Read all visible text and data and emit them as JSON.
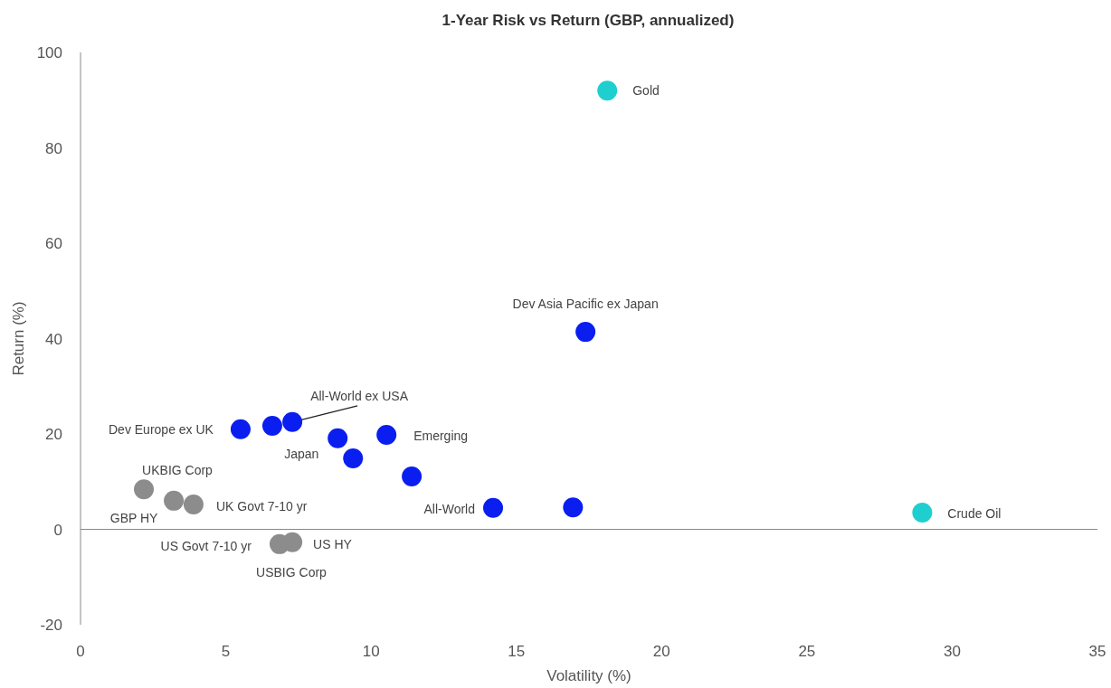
{
  "chart_data": {
    "type": "scatter",
    "title": "1-Year Risk vs Return (GBP, annualized)",
    "xlabel": "Volatility (%)",
    "ylabel": "Return (%)",
    "xlim": [
      0,
      35
    ],
    "xticks": [
      0,
      5,
      10,
      15,
      20,
      25,
      30,
      35
    ],
    "ylim": [
      -20,
      100
    ],
    "yticks": [
      -20,
      0,
      20,
      40,
      60,
      80,
      100
    ],
    "marker": "circle",
    "series": [
      {
        "color": "#0a1ef0",
        "x": [
          17.38,
          5.51,
          6.6,
          7.29,
          8.85,
          9.38,
          10.53,
          11.4,
          14.2,
          16.95
        ],
        "values": [
          41.4,
          21.0,
          21.7,
          22.5,
          19.1,
          14.9,
          19.8,
          11.1,
          4.5,
          4.6
        ]
      },
      {
        "color": "#8c8c8c",
        "x": [
          2.18,
          3.21,
          3.89,
          6.85,
          7.29
        ],
        "values": [
          8.4,
          6.0,
          5.2,
          -3.1,
          -2.7
        ]
      },
      {
        "color": "#1fcfcf",
        "x": [
          18.13,
          28.97
        ],
        "values": [
          92.0,
          3.5
        ]
      }
    ],
    "annotations": [
      {
        "text": "Gold",
        "x": 18.13,
        "y": 92.0
      },
      {
        "text": "Dev Asia Pacific ex Japan",
        "x": 17.38,
        "y": 41.4
      },
      {
        "text": "Crude Oil",
        "x": 28.97,
        "y": 3.5
      },
      {
        "text": "Dev Europe  ex UK",
        "x": 5.51,
        "y": 21.0
      },
      {
        "text": "All-World ex USA",
        "x": 7.29,
        "y": 22.5
      },
      {
        "text": "Japan",
        "x": 8.85,
        "y": 19.1
      },
      {
        "text": "Emerging",
        "x": 10.53,
        "y": 19.8
      },
      {
        "text": "All-World",
        "x": 14.2,
        "y": 4.5
      },
      {
        "text": "UKBIG Corp",
        "x": 2.18,
        "y": 8.4
      },
      {
        "text": "GBP HY",
        "x": 3.21,
        "y": 6.0
      },
      {
        "text": "UK Govt 7-10  yr",
        "x": 3.89,
        "y": 5.2
      },
      {
        "text": "US Govt 7-10  yr",
        "x": 6.85,
        "y": -3.1
      },
      {
        "text": "US HY",
        "x": 7.29,
        "y": -2.7
      },
      {
        "text": "USBIG Corp",
        "x": 6.85,
        "y": -3.1
      }
    ]
  }
}
